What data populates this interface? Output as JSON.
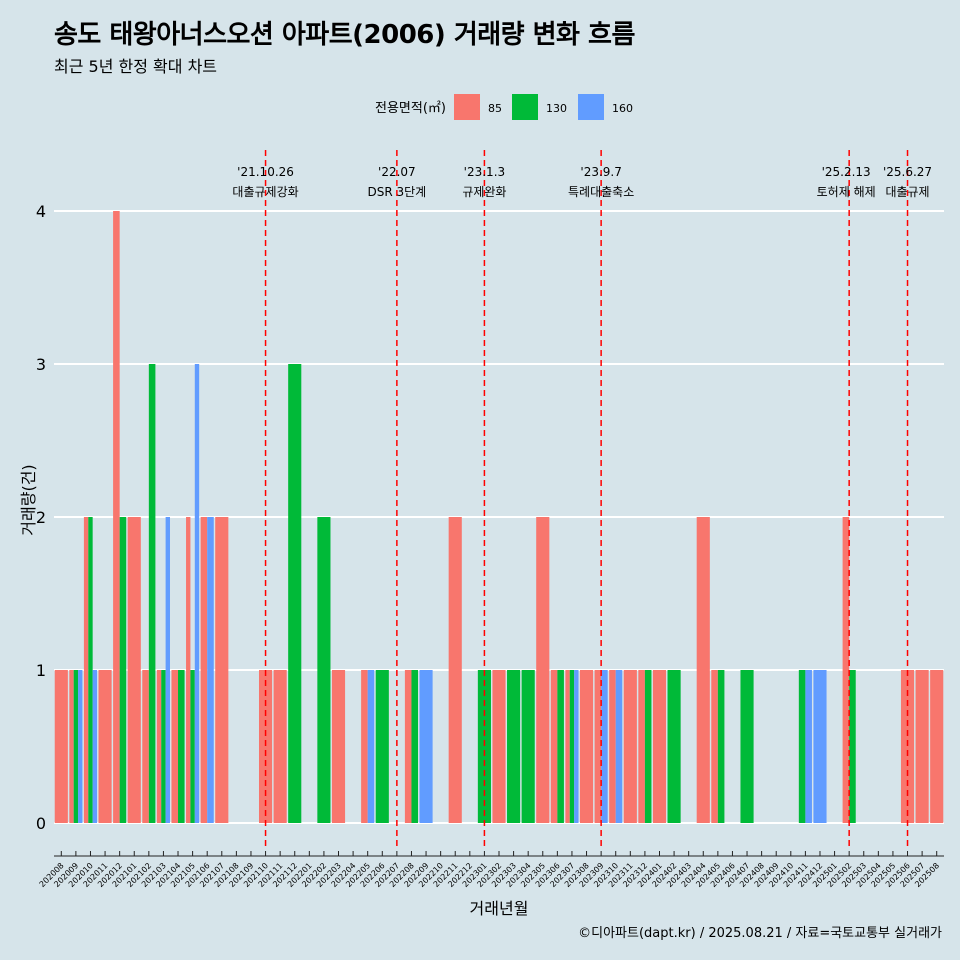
{
  "title": "송도 태왕아너스오션 아파트(2006) 거래량 변화 흐름",
  "subtitle": "최근 5년 한정 확대 차트",
  "caption": "©디아파트(dapt.kr) / 2025.08.21 / 자료=국토교통부 실거래가",
  "chart_data": {
    "type": "bar",
    "xlabel": "거래년월",
    "ylabel": "거래량(건)",
    "ylim": [
      0,
      4
    ],
    "yticks": [
      0,
      1,
      2,
      3,
      4
    ],
    "grid": true,
    "legend": {
      "title": "전용면적(㎡)",
      "position": "top",
      "entries": [
        {
          "name": "85",
          "color": "#F8766D"
        },
        {
          "name": "130",
          "color": "#00BA38"
        },
        {
          "name": "160",
          "color": "#619CFF"
        }
      ]
    },
    "categories": [
      "202008",
      "202009",
      "202010",
      "202011",
      "202012",
      "202101",
      "202102",
      "202103",
      "202104",
      "202105",
      "202106",
      "202107",
      "202108",
      "202109",
      "202110",
      "202111",
      "202112",
      "202201",
      "202202",
      "202203",
      "202204",
      "202205",
      "202206",
      "202207",
      "202208",
      "202209",
      "202210",
      "202211",
      "202212",
      "202301",
      "202302",
      "202303",
      "202304",
      "202305",
      "202306",
      "202307",
      "202308",
      "202309",
      "202310",
      "202311",
      "202312",
      "202401",
      "202402",
      "202403",
      "202404",
      "202405",
      "202406",
      "202407",
      "202408",
      "202409",
      "202410",
      "202411",
      "202412",
      "202501",
      "202502",
      "202503",
      "202504",
      "202505",
      "202506",
      "202507",
      "202508"
    ],
    "series": [
      {
        "name": "85",
        "color": "#F8766D",
        "values": [
          1,
          1,
          2,
          1,
          4,
          2,
          1,
          1,
          1,
          2,
          2,
          2,
          0,
          0,
          1,
          1,
          0,
          0,
          0,
          1,
          0,
          1,
          0,
          0,
          1,
          0,
          0,
          2,
          0,
          0,
          1,
          0,
          0,
          2,
          1,
          1,
          1,
          1,
          1,
          1,
          1,
          1,
          0,
          0,
          2,
          1,
          0,
          0,
          0,
          0,
          0,
          0,
          0,
          0,
          2,
          0,
          0,
          0,
          1,
          1,
          1
        ]
      },
      {
        "name": "130",
        "color": "#00BA38",
        "values": [
          0,
          1,
          2,
          0,
          2,
          0,
          3,
          1,
          1,
          1,
          0,
          0,
          0,
          0,
          0,
          0,
          3,
          0,
          2,
          0,
          0,
          0,
          1,
          0,
          1,
          0,
          0,
          0,
          0,
          1,
          0,
          1,
          1,
          0,
          1,
          1,
          0,
          0,
          0,
          0,
          1,
          0,
          1,
          0,
          0,
          1,
          0,
          1,
          0,
          0,
          0,
          1,
          0,
          0,
          1,
          0,
          0,
          0,
          0,
          0,
          0
        ]
      },
      {
        "name": "160",
        "color": "#619CFF",
        "values": [
          0,
          1,
          1,
          0,
          0,
          0,
          0,
          2,
          0,
          3,
          2,
          0,
          0,
          0,
          0,
          0,
          0,
          0,
          0,
          0,
          0,
          1,
          0,
          0,
          0,
          1,
          0,
          0,
          0,
          0,
          0,
          0,
          0,
          0,
          0,
          1,
          0,
          1,
          1,
          0,
          0,
          0,
          0,
          0,
          0,
          0,
          0,
          0,
          0,
          0,
          0,
          1,
          1,
          0,
          0,
          0,
          0,
          0,
          0,
          0,
          0
        ]
      }
    ],
    "annotations": [
      {
        "category": "202110",
        "date": "'21.10.26",
        "label": "대출규제강화"
      },
      {
        "category": "202207",
        "date": "'22.07",
        "label": "DSR 3단계"
      },
      {
        "category": "202301",
        "date": "'23.1.3",
        "label": "규제완화"
      },
      {
        "category": "202309",
        "date": "'23.9.7",
        "label": "특례대출축소"
      },
      {
        "category": "202502",
        "date": "'25.2.13",
        "label": "토허제 해제"
      },
      {
        "category": "202506",
        "date": "'25.6.27",
        "label": "대출규제"
      }
    ]
  }
}
